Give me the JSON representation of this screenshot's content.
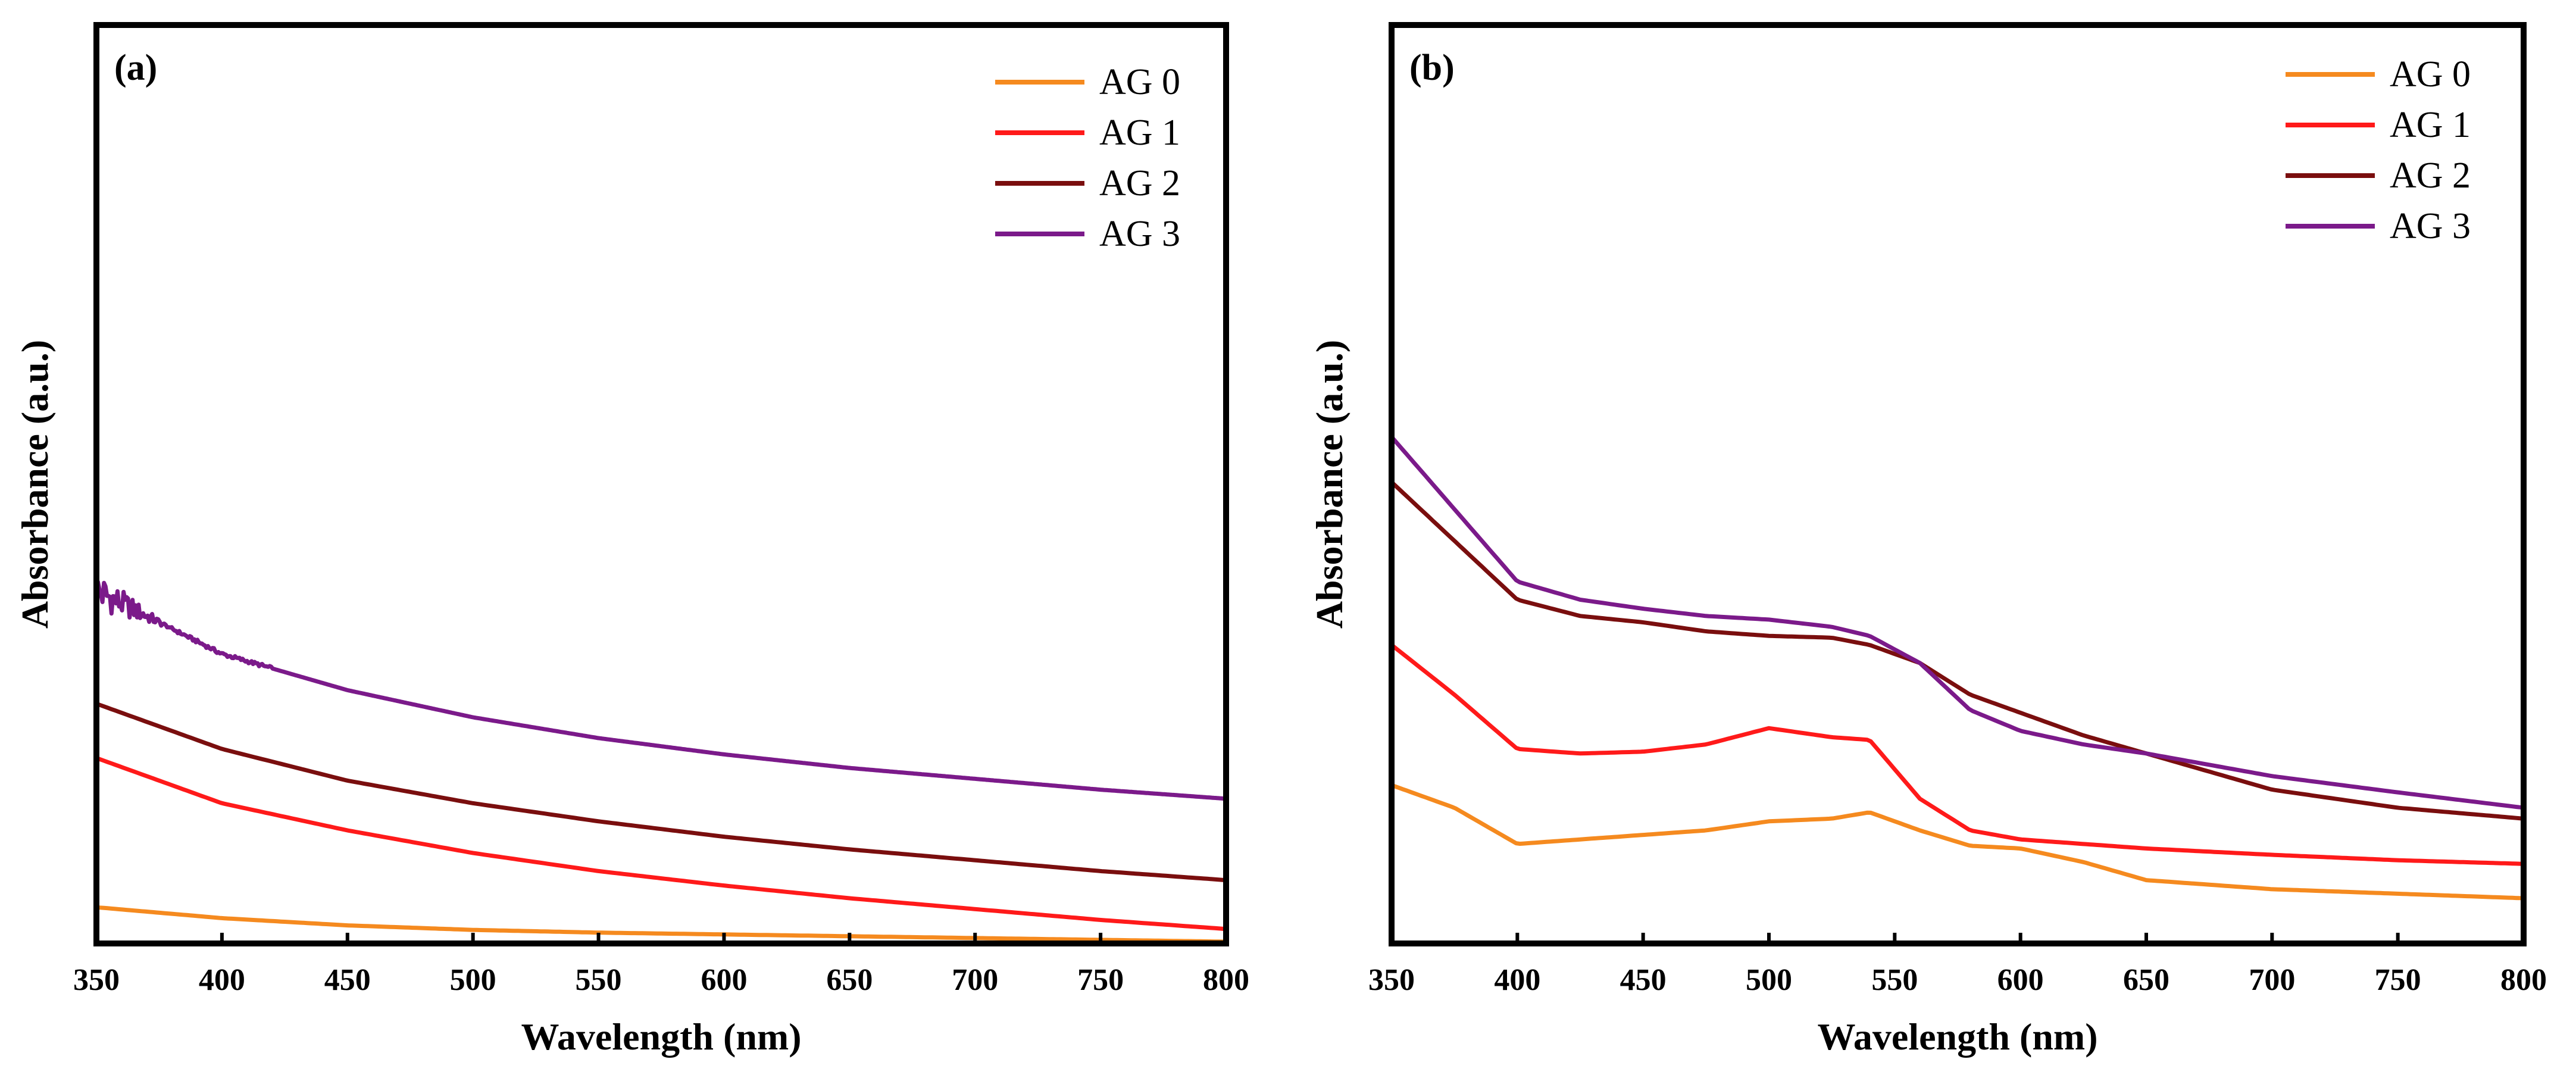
{
  "chart_data": [
    {
      "type": "line",
      "panel_label": "(a)",
      "xlabel": "Wavelength (nm)",
      "ylabel": "Absorbance (a.u.)",
      "xlim": [
        350,
        800
      ],
      "ylim": [
        0,
        1
      ],
      "xticks": [
        "350",
        "400",
        "450",
        "500",
        "550",
        "600",
        "650",
        "700",
        "750",
        "800"
      ],
      "yticks_shown": false,
      "legend_position": "top-right",
      "x": [
        350,
        400,
        450,
        500,
        550,
        600,
        650,
        700,
        750,
        800
      ],
      "series": [
        {
          "name": "AG 0",
          "color": "#f58a1f",
          "values": [
            0.04,
            0.028,
            0.02,
            0.015,
            0.012,
            0.01,
            0.008,
            0.006,
            0.004,
            0.002
          ]
        },
        {
          "name": "AG 1",
          "color": "#ff1a1a",
          "values": [
            0.205,
            0.155,
            0.125,
            0.1,
            0.08,
            0.064,
            0.05,
            0.038,
            0.026,
            0.016
          ]
        },
        {
          "name": "AG 2",
          "color": "#7a0e0e",
          "values": [
            0.265,
            0.215,
            0.18,
            0.155,
            0.135,
            0.118,
            0.104,
            0.092,
            0.08,
            0.07
          ]
        },
        {
          "name": "AG 3",
          "color": "#7b1a8a",
          "noisy_start": true,
          "values": [
            0.39,
            0.32,
            0.28,
            0.25,
            0.227,
            0.209,
            0.194,
            0.182,
            0.17,
            0.16
          ]
        }
      ]
    },
    {
      "type": "line",
      "panel_label": "(b)",
      "xlabel": "Wavelength (nm)",
      "ylabel": "Absorbance (a.u.)",
      "xlim": [
        350,
        800
      ],
      "ylim": [
        0,
        1
      ],
      "xticks": [
        "350",
        "400",
        "450",
        "500",
        "550",
        "600",
        "650",
        "700",
        "750",
        "800"
      ],
      "yticks_shown": false,
      "legend_position": "top-right",
      "x": [
        350,
        375,
        400,
        425,
        450,
        475,
        500,
        525,
        540,
        560,
        580,
        600,
        625,
        650,
        700,
        750,
        800
      ],
      "series": [
        {
          "name": "AG 0",
          "color": "#f58a1f",
          "values": [
            0.175,
            0.15,
            0.11,
            0.115,
            0.12,
            0.125,
            0.135,
            0.138,
            0.145,
            0.125,
            0.108,
            0.105,
            0.09,
            0.07,
            0.06,
            0.055,
            0.05
          ]
        },
        {
          "name": "AG 1",
          "color": "#ff1a1a",
          "values": [
            0.33,
            0.275,
            0.215,
            0.21,
            0.212,
            0.22,
            0.238,
            0.228,
            0.225,
            0.16,
            0.125,
            0.115,
            0.11,
            0.105,
            0.098,
            0.092,
            0.088
          ]
        },
        {
          "name": "AG 2",
          "color": "#7a0e0e",
          "values": [
            0.51,
            0.445,
            0.38,
            0.362,
            0.355,
            0.345,
            0.34,
            0.338,
            0.33,
            0.31,
            0.275,
            0.255,
            0.23,
            0.21,
            0.17,
            0.15,
            0.138
          ]
        },
        {
          "name": "AG 3",
          "color": "#7b1a8a",
          "values": [
            0.56,
            0.48,
            0.4,
            0.38,
            0.37,
            0.362,
            0.358,
            0.35,
            0.34,
            0.31,
            0.258,
            0.235,
            0.22,
            0.21,
            0.185,
            0.167,
            0.15
          ]
        }
      ]
    }
  ]
}
